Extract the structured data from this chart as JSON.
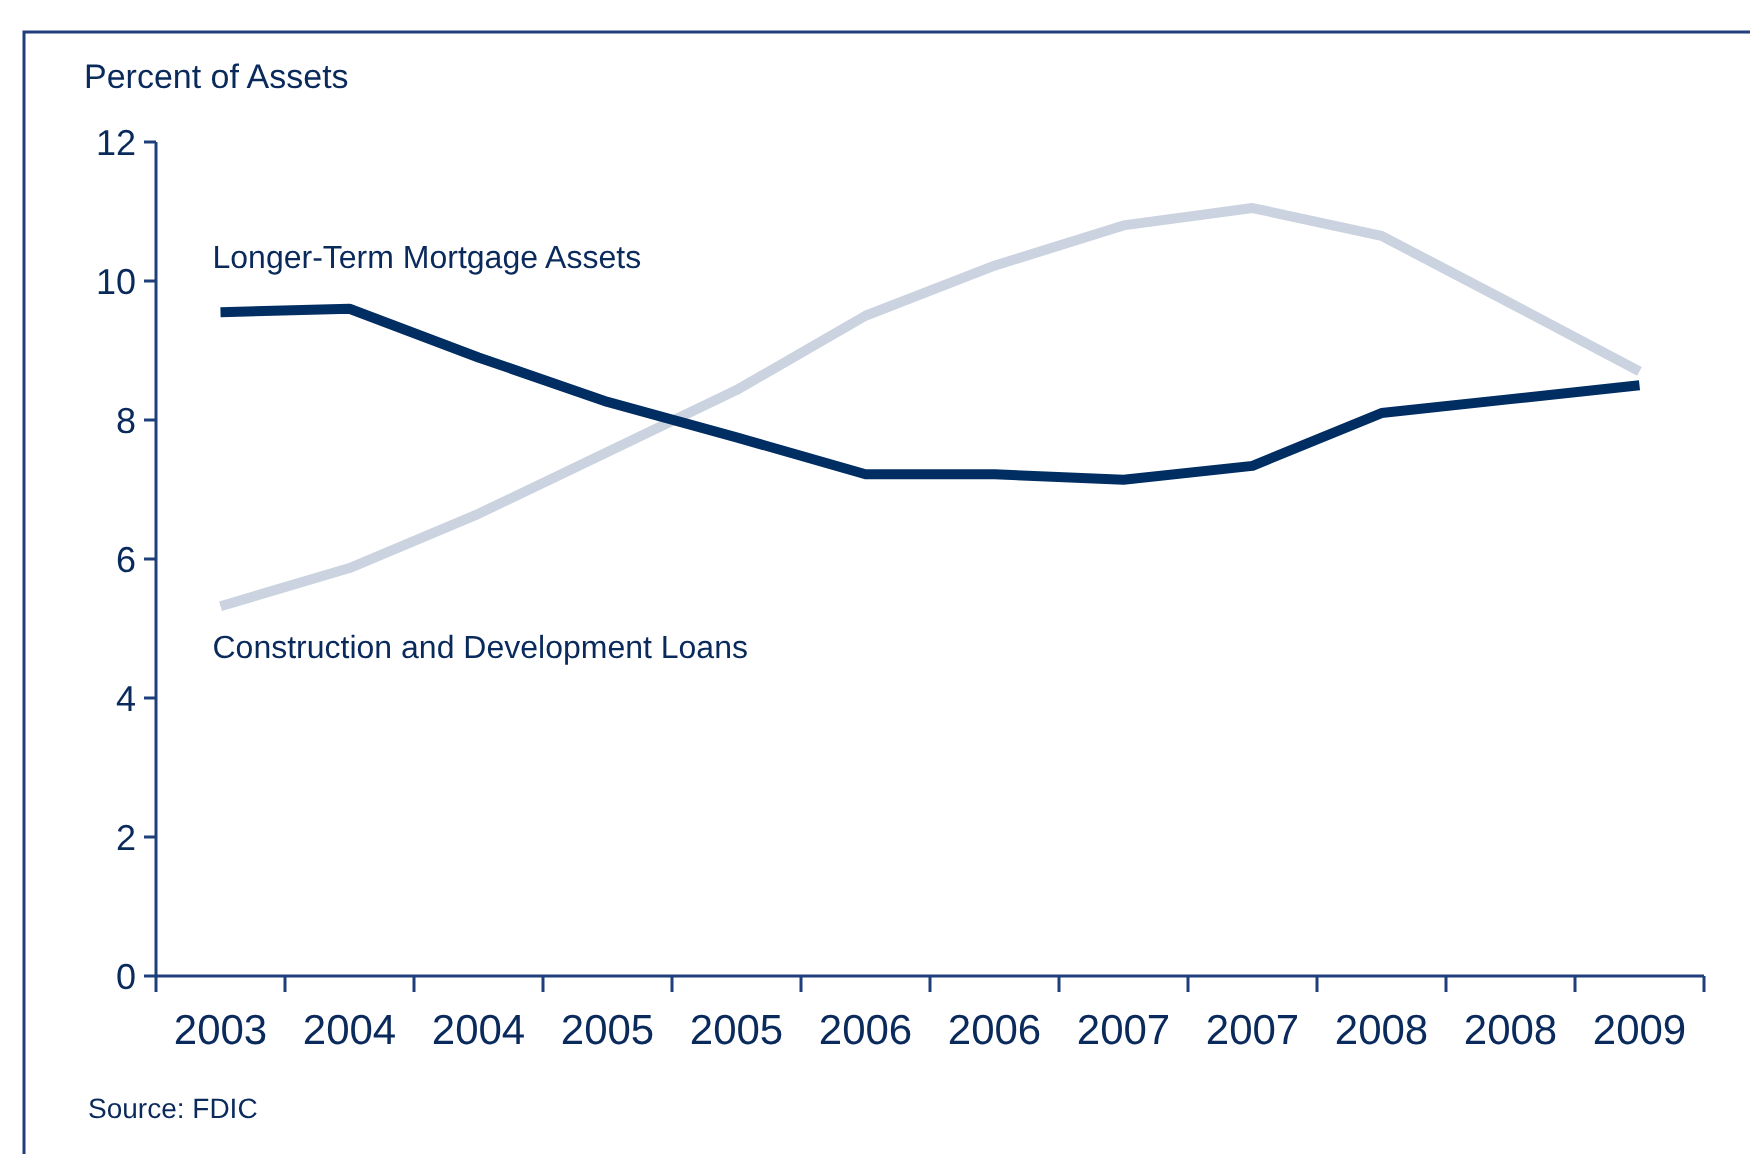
{
  "chart_data": {
    "type": "line",
    "ylabel": "Percent of Assets",
    "categories": [
      "2003",
      "2004",
      "2004",
      "2005",
      "2005",
      "2006",
      "2006",
      "2007",
      "2007",
      "2008",
      "2008",
      "2009"
    ],
    "series": [
      {
        "name": "Longer-Term Mortgage Assets",
        "color": "#002d62",
        "values": [
          9.55,
          9.6,
          8.9,
          8.26,
          7.75,
          7.22,
          7.22,
          7.14,
          7.34,
          8.1,
          8.3,
          8.5
        ]
      },
      {
        "name": "Construction and Development Loans",
        "color": "#ccd3e0",
        "values": [
          5.32,
          5.87,
          6.65,
          7.54,
          8.43,
          9.5,
          10.22,
          10.8,
          11.05,
          10.65,
          9.68,
          8.7
        ]
      }
    ],
    "ylim": [
      0,
      12
    ],
    "yticks": [
      0,
      2,
      4,
      6,
      8,
      10,
      12
    ],
    "grid": false,
    "annotations": [
      "Source: FDIC"
    ]
  }
}
